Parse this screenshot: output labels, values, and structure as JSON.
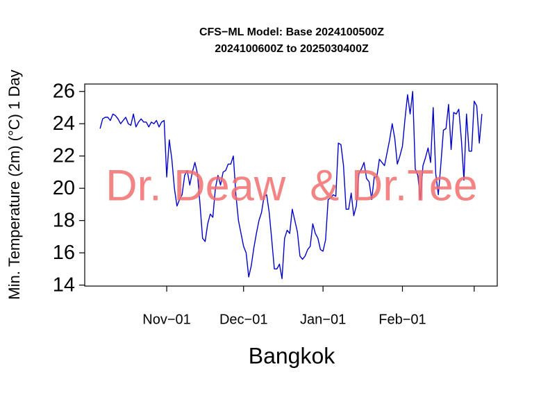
{
  "chart_data": {
    "type": "line",
    "title": "CFS−ML Model: Base 2024100500Z",
    "subtitle": "2024100600Z to 2025030400Z",
    "y_label": "Min. Temperature (2m) (°C) 1 Day",
    "x_label": "Bangkok",
    "watermark": "Dr. Deaw  & Dr.Tee",
    "x": [
      "Oct-06",
      "Oct-07",
      "Oct-08",
      "Oct-09",
      "Oct-10",
      "Oct-11",
      "Oct-12",
      "Oct-13",
      "Oct-14",
      "Oct-15",
      "Oct-16",
      "Oct-17",
      "Oct-18",
      "Oct-19",
      "Oct-20",
      "Oct-21",
      "Oct-22",
      "Oct-23",
      "Oct-24",
      "Oct-25",
      "Oct-26",
      "Oct-27",
      "Oct-28",
      "Oct-29",
      "Oct-30",
      "Oct-31",
      "Nov-01",
      "Nov-02",
      "Nov-03",
      "Nov-04",
      "Nov-05",
      "Nov-06",
      "Nov-07",
      "Nov-08",
      "Nov-09",
      "Nov-10",
      "Nov-11",
      "Nov-12",
      "Nov-13",
      "Nov-14",
      "Nov-15",
      "Nov-16",
      "Nov-17",
      "Nov-18",
      "Nov-19",
      "Nov-20",
      "Nov-21",
      "Nov-22",
      "Nov-23",
      "Nov-24",
      "Nov-25",
      "Nov-26",
      "Nov-27",
      "Nov-28",
      "Nov-29",
      "Nov-30",
      "Dec-01",
      "Dec-02",
      "Dec-03",
      "Dec-04",
      "Dec-05",
      "Dec-06",
      "Dec-07",
      "Dec-08",
      "Dec-09",
      "Dec-10",
      "Dec-11",
      "Dec-12",
      "Dec-13",
      "Dec-14",
      "Dec-15",
      "Dec-16",
      "Dec-17",
      "Dec-18",
      "Dec-19",
      "Dec-20",
      "Dec-21",
      "Dec-22",
      "Dec-23",
      "Dec-24",
      "Dec-25",
      "Dec-26",
      "Dec-27",
      "Dec-28",
      "Dec-29",
      "Dec-30",
      "Dec-31",
      "Jan-01",
      "Jan-02",
      "Jan-03",
      "Jan-04",
      "Jan-05",
      "Jan-06",
      "Jan-07",
      "Jan-08",
      "Jan-09",
      "Jan-10",
      "Jan-11",
      "Jan-12",
      "Jan-13",
      "Jan-14",
      "Jan-15",
      "Jan-16",
      "Jan-17",
      "Jan-18",
      "Jan-19",
      "Jan-20",
      "Jan-21",
      "Jan-22",
      "Jan-23",
      "Jan-24",
      "Jan-25",
      "Jan-26",
      "Jan-27",
      "Jan-28",
      "Jan-29",
      "Jan-30",
      "Jan-31",
      "Feb-01",
      "Feb-02",
      "Feb-03",
      "Feb-04",
      "Feb-05",
      "Feb-06",
      "Feb-07",
      "Feb-08",
      "Feb-09",
      "Feb-10",
      "Feb-11",
      "Feb-12",
      "Feb-13",
      "Feb-14",
      "Feb-15",
      "Feb-16",
      "Feb-17",
      "Feb-18",
      "Feb-19",
      "Feb-20",
      "Feb-21",
      "Feb-22",
      "Feb-23",
      "Feb-24",
      "Feb-25",
      "Feb-26",
      "Feb-27",
      "Feb-28",
      "Mar-01",
      "Mar-02",
      "Mar-03",
      "Mar-04"
    ],
    "series": [
      {
        "color": "#0000cc",
        "values": [
          23.7,
          24.3,
          24.4,
          24.4,
          24.2,
          24.6,
          24.5,
          24.3,
          24.0,
          24.2,
          24.4,
          24.0,
          23.9,
          24.6,
          23.8,
          24.1,
          24.3,
          24.1,
          24.1,
          23.8,
          24.1,
          24.0,
          24.2,
          23.8,
          24.1,
          24.2,
          20.7,
          23.0,
          21.8,
          20.0,
          18.9,
          19.3,
          19.6,
          20.8,
          21.1,
          20.2,
          21.0,
          21.6,
          20.9,
          19.0,
          16.9,
          16.7,
          17.8,
          18.4,
          18.2,
          20.0,
          20.8,
          20.2,
          21.0,
          21.1,
          21.5,
          21.5,
          22.0,
          19.6,
          18.0,
          17.2,
          16.4,
          16.0,
          14.5,
          15.2,
          16.3,
          17.2,
          18.0,
          18.5,
          19.5,
          19.6,
          18.5,
          16.8,
          15.0,
          15.0,
          15.3,
          14.4,
          16.9,
          17.4,
          17.2,
          18.7,
          18.0,
          17.3,
          15.8,
          15.6,
          15.8,
          16.2,
          16.4,
          17.8,
          17.2,
          16.9,
          16.2,
          16.1,
          16.8,
          19.3,
          19.4,
          19.6,
          19.5,
          22.8,
          22.7,
          21.4,
          18.7,
          18.7,
          19.7,
          18.3,
          18.9,
          20.9,
          21.2,
          21.6,
          20.6,
          20.4,
          19.3,
          20.7,
          20.7,
          21.8,
          21.6,
          21.4,
          22.2,
          23.0,
          24.0,
          23.1,
          21.5,
          22.0,
          22.6,
          24.3,
          25.8,
          24.6,
          26.0,
          21.2,
          20.8,
          19.3,
          21.4,
          21.9,
          22.5,
          21.6,
          25.0,
          20.9,
          19.6,
          21.5,
          23.6,
          23.7,
          25.2,
          22.4,
          24.7,
          24.6,
          24.9,
          23.0,
          20.5,
          24.6,
          22.3,
          22.3,
          25.4,
          25.1,
          22.8,
          24.6
        ]
      }
    ],
    "xlim": [
      "Sep-30",
      "Mar-10"
    ],
    "xticks": [
      {
        "value": "Nov-01",
        "label": "Nov−01"
      },
      {
        "value": "Dec-01",
        "label": "Dec−01"
      },
      {
        "value": "Jan-01",
        "label": "Jan−01"
      },
      {
        "value": "Feb-01",
        "label": "Feb−01"
      },
      {
        "value": "Mar-01",
        "label": null
      }
    ],
    "ylim": [
      13.94,
      26.46
    ],
    "yticks": [
      14,
      16,
      18,
      20,
      22,
      24,
      26
    ]
  }
}
